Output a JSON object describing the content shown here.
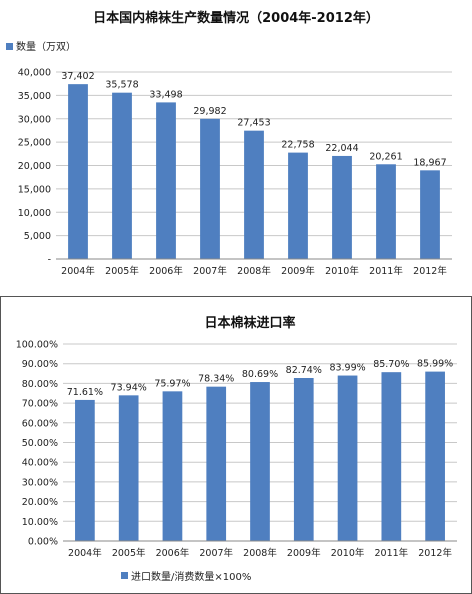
{
  "chart_data": [
    {
      "type": "bar",
      "title": "日本国内棉袜生产数量情况（2004年-2012年）",
      "legend": "数量（万双）",
      "legend_position": "top-left",
      "categories": [
        "2004年",
        "2005年",
        "2006年",
        "2007年",
        "2008年",
        "2009年",
        "2010年",
        "2011年",
        "2012年"
      ],
      "values": [
        37402,
        35578,
        33498,
        29982,
        27453,
        22758,
        22044,
        20261,
        18967
      ],
      "value_labels": [
        "37,402",
        "35,578",
        "33,498",
        "29,982",
        "27,453",
        "22,758",
        "22,044",
        "20,261",
        "18,967"
      ],
      "ylim": [
        0,
        40000
      ],
      "y_ticks": [
        "-",
        "5,000",
        "10,000",
        "15,000",
        "20,000",
        "25,000",
        "30,000",
        "35,000",
        "40,000"
      ],
      "grid": true,
      "bar_color": "#4F7FC0"
    },
    {
      "type": "bar",
      "title": "日本棉袜进口率",
      "legend": "进口数量/消费数量×100%",
      "legend_position": "bottom",
      "categories": [
        "2004年",
        "2005年",
        "2006年",
        "2007年",
        "2008年",
        "2009年",
        "2010年",
        "2011年",
        "2012年"
      ],
      "values": [
        71.61,
        73.94,
        75.97,
        78.34,
        80.69,
        82.74,
        83.99,
        85.7,
        85.99
      ],
      "value_labels": [
        "71.61%",
        "73.94%",
        "75.97%",
        "78.34%",
        "80.69%",
        "82.74%",
        "83.99%",
        "85.70%",
        "85.99%"
      ],
      "ylim": [
        0,
        100
      ],
      "y_ticks": [
        "0.00%",
        "10.00%",
        "20.00%",
        "30.00%",
        "40.00%",
        "50.00%",
        "60.00%",
        "70.00%",
        "80.00%",
        "90.00%",
        "100.00%"
      ],
      "grid": true,
      "bar_color": "#4F7FC0"
    }
  ]
}
